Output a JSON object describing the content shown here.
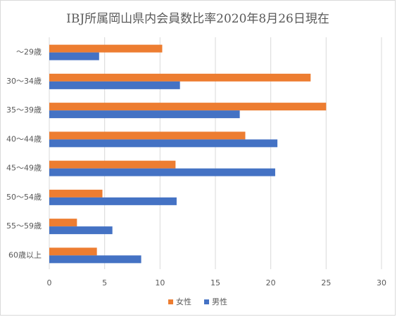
{
  "chart_data": {
    "type": "bar",
    "orientation": "horizontal",
    "title": "IBJ所属岡山県内会員数比率2020年8月26日現在",
    "categories": [
      "～29歳",
      "30～34歳",
      "35～39歳",
      "40～44歳",
      "45～49歳",
      "50～54歳",
      "55～59歳",
      "60歳以上"
    ],
    "series": [
      {
        "name": "女性",
        "color": "#ed7d31",
        "values": [
          10.2,
          23.6,
          25.0,
          17.7,
          11.4,
          4.8,
          2.5,
          4.3
        ]
      },
      {
        "name": "男性",
        "color": "#4472c4",
        "values": [
          4.5,
          11.8,
          17.2,
          20.6,
          20.4,
          11.5,
          5.7,
          8.3
        ]
      }
    ],
    "xlim": [
      0,
      30
    ],
    "xticks": [
      0,
      5,
      10,
      15,
      20,
      25,
      30
    ],
    "grid": true,
    "legend_position": "bottom"
  }
}
